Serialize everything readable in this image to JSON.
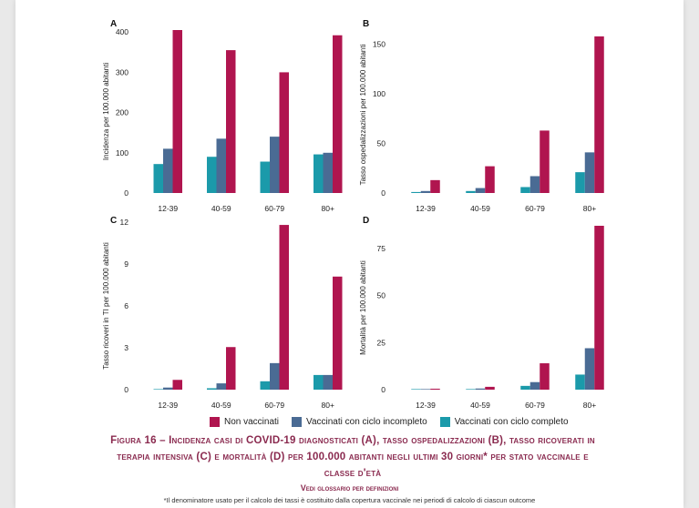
{
  "colors": {
    "teal": "#1b9aaa",
    "slate": "#4a6b94",
    "crimson": "#b0154f"
  },
  "legend": [
    {
      "label": "Non vaccinati",
      "color": "#b0154f"
    },
    {
      "label": "Vaccinati con ciclo incompleto",
      "color": "#4a6b94"
    },
    {
      "label": "Vaccinati con ciclo completo",
      "color": "#1b9aaa"
    }
  ],
  "caption": "Figura 16 – Incidenza casi di COVID-19 diagnosticati (A), tasso ospedalizzazioni (B), tasso ricoverati in terapia intensiva (C) e mortalità (D) per 100.000 abitanti negli ultimi 30 giorni* per stato vaccinale e classe d'età",
  "glossary": "Vedi glossario per definizioni",
  "footnote": "*Il denominatore usato per il calcolo dei tassi è costituito dalla copertura vaccinale nei periodi di calcolo di ciascun outcome",
  "chart_data": [
    {
      "panel": "A",
      "type": "bar",
      "ylabel": "Incidenza per 100.000 abitanti",
      "categories": [
        "12-39",
        "40-59",
        "60-79",
        "80+"
      ],
      "ylim": [
        0,
        405
      ],
      "yticks": [
        0,
        100,
        200,
        300,
        400
      ],
      "series": [
        {
          "values": [
            72,
            90,
            78,
            96
          ],
          "color": "#1b9aaa"
        },
        {
          "values": [
            110,
            135,
            140,
            100
          ],
          "color": "#4a6b94"
        },
        {
          "values": [
            405,
            355,
            300,
            392
          ],
          "color": "#b0154f"
        }
      ]
    },
    {
      "panel": "B",
      "type": "bar",
      "ylabel": "Tasso ospedalizzazioni per 100.000 abitanti",
      "categories": [
        "12-39",
        "40-59",
        "60-79",
        "80+"
      ],
      "ylim": [
        0,
        158
      ],
      "yticks": [
        0,
        50,
        100,
        150
      ],
      "series": [
        {
          "values": [
            1,
            2,
            6,
            21
          ],
          "color": "#1b9aaa"
        },
        {
          "values": [
            2,
            5,
            17,
            41
          ],
          "color": "#4a6b94"
        },
        {
          "values": [
            13,
            27,
            63,
            158
          ],
          "color": "#b0154f"
        }
      ]
    },
    {
      "panel": "C",
      "type": "bar",
      "ylabel": "Tasso ricoveri in TI per 100.000 abitanti",
      "categories": [
        "12-39",
        "40-59",
        "60-79",
        "80+"
      ],
      "ylim": [
        0,
        12
      ],
      "yticks": [
        0,
        3,
        6,
        9,
        12
      ],
      "series": [
        {
          "values": [
            0,
            0.1,
            0.6,
            1.05
          ],
          "color": "#1b9aaa"
        },
        {
          "values": [
            0.15,
            0.45,
            1.9,
            1.05
          ],
          "color": "#4a6b94"
        },
        {
          "values": [
            0.7,
            3.05,
            11.8,
            8.1
          ],
          "color": "#b0154f"
        }
      ]
    },
    {
      "panel": "D",
      "type": "bar",
      "ylabel": "Mortalità per 100.000 abitanti",
      "categories": [
        "12-39",
        "40-59",
        "60-79",
        "80+"
      ],
      "ylim": [
        0,
        87
      ],
      "yticks": [
        0,
        25,
        50,
        75
      ],
      "series": [
        {
          "values": [
            0.2,
            0.3,
            2,
            8
          ],
          "color": "#1b9aaa"
        },
        {
          "values": [
            0.3,
            0.6,
            4,
            22
          ],
          "color": "#4a6b94"
        },
        {
          "values": [
            0.5,
            1.5,
            14,
            87
          ],
          "color": "#b0154f"
        }
      ]
    }
  ]
}
